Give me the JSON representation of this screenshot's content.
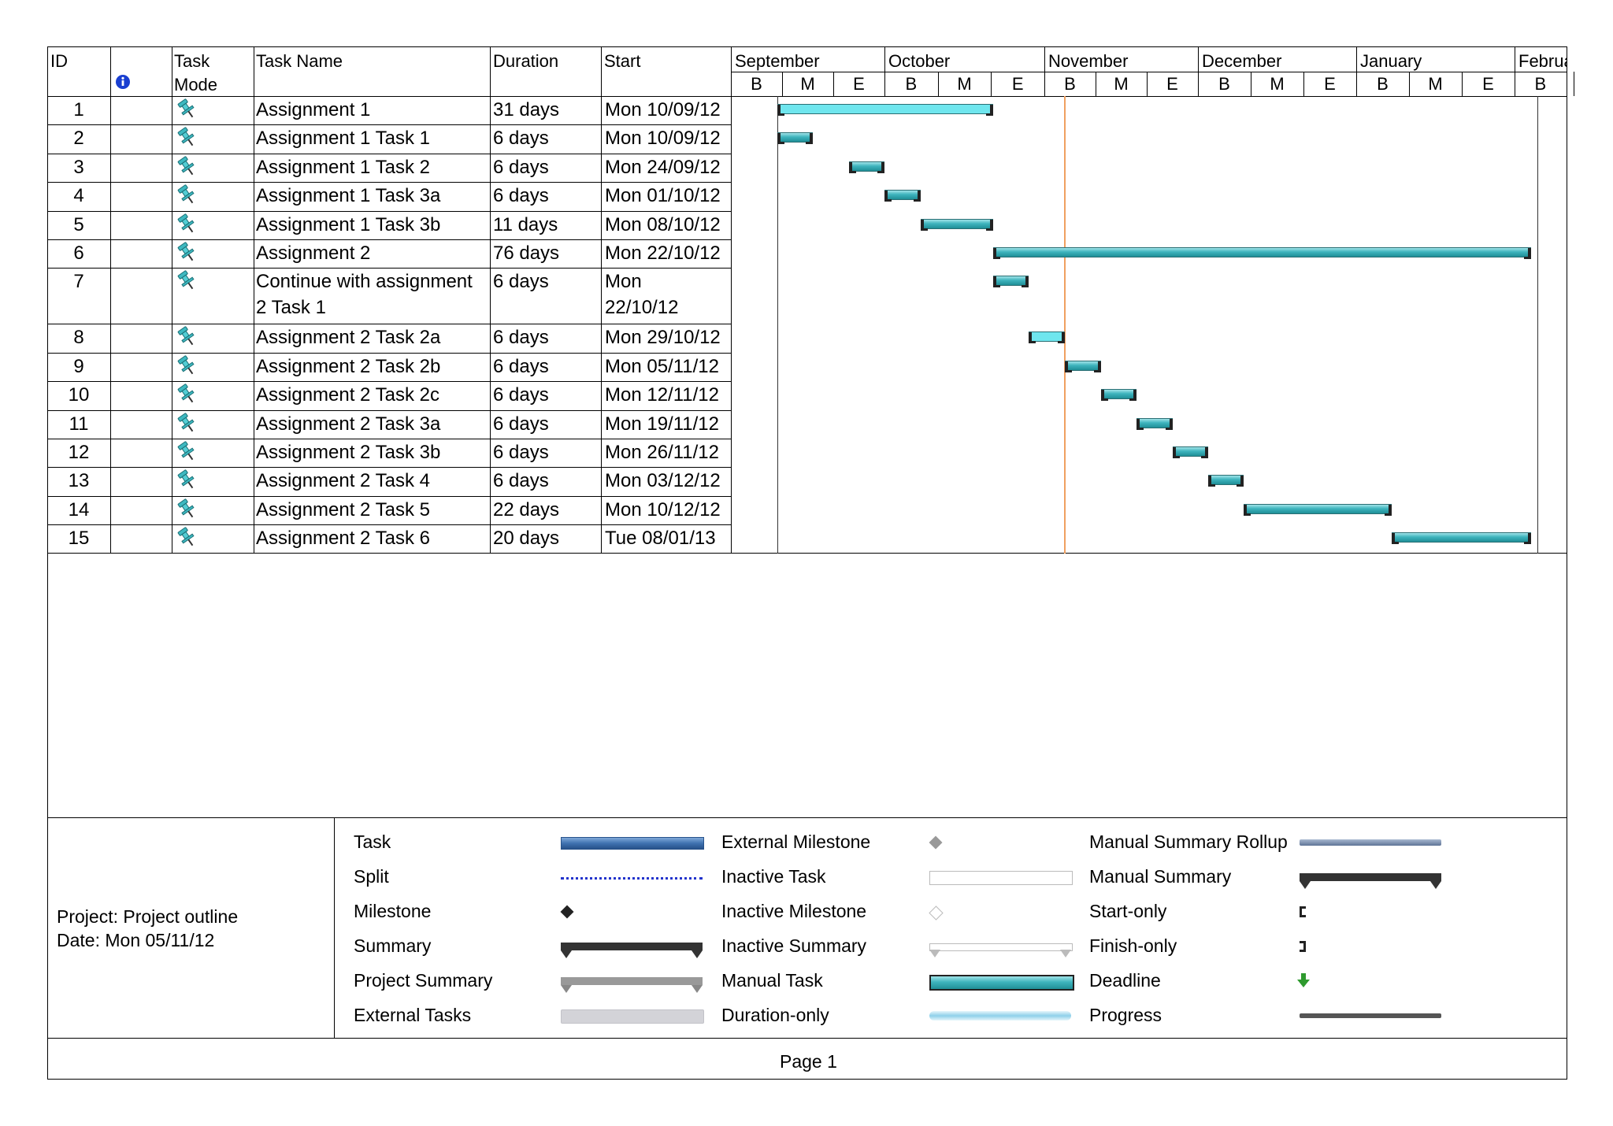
{
  "columns": {
    "id": "ID",
    "info_icon": "info-icon",
    "task_mode_line1": "Task",
    "task_mode_line2": "Mode",
    "task_name": "Task Name",
    "duration": "Duration",
    "start": "Start"
  },
  "timescale": {
    "months": [
      "September",
      "October",
      "November",
      "December",
      "January",
      "Februa"
    ],
    "thirds": [
      "B",
      "M",
      "E",
      "B",
      "M",
      "E",
      "B",
      "M",
      "E",
      "B",
      "M",
      "E",
      "B",
      "M",
      "E",
      "B"
    ]
  },
  "tasks": [
    {
      "id": "1",
      "name": "Assignment 1",
      "duration": "31 days",
      "start": "Mon 10/09/12",
      "start_date": "2012-09-10",
      "end_date": "2012-10-22",
      "highlight": true
    },
    {
      "id": "2",
      "name": "Assignment 1 Task 1",
      "duration": "6 days",
      "start": "Mon 10/09/12",
      "start_date": "2012-09-10",
      "end_date": "2012-09-17"
    },
    {
      "id": "3",
      "name": "Assignment 1 Task 2",
      "duration": "6 days",
      "start": "Mon 24/09/12",
      "start_date": "2012-09-24",
      "end_date": "2012-10-01"
    },
    {
      "id": "4",
      "name": "Assignment 1 Task 3a",
      "duration": "6 days",
      "start": "Mon 01/10/12",
      "start_date": "2012-10-01",
      "end_date": "2012-10-08"
    },
    {
      "id": "5",
      "name": "Assignment 1 Task 3b",
      "duration": "11 days",
      "start": "Mon 08/10/12",
      "start_date": "2012-10-08",
      "end_date": "2012-10-22"
    },
    {
      "id": "6",
      "name": "Assignment 2",
      "duration": "76 days",
      "start": "Mon 22/10/12",
      "start_date": "2012-10-22",
      "end_date": "2013-02-04"
    },
    {
      "id": "7",
      "name_line1": "Continue with assignment",
      "name_line2": "2 Task 1",
      "duration": "6 days",
      "start_line1": "Mon",
      "start_line2": "22/10/12",
      "start_date": "2012-10-22",
      "end_date": "2012-10-29",
      "tall": true
    },
    {
      "id": "8",
      "name": "Assignment 2 Task 2a",
      "duration": "6 days",
      "start": "Mon 29/10/12",
      "start_date": "2012-10-29",
      "end_date": "2012-11-05",
      "highlight": true
    },
    {
      "id": "9",
      "name": "Assignment 2 Task 2b",
      "duration": "6 days",
      "start": "Mon 05/11/12",
      "start_date": "2012-11-05",
      "end_date": "2012-11-12"
    },
    {
      "id": "10",
      "name": "Assignment 2 Task 2c",
      "duration": "6 days",
      "start": "Mon 12/11/12",
      "start_date": "2012-11-12",
      "end_date": "2012-11-19"
    },
    {
      "id": "11",
      "name": "Assignment 2 Task 3a",
      "duration": "6 days",
      "start": "Mon 19/11/12",
      "start_date": "2012-11-19",
      "end_date": "2012-11-26"
    },
    {
      "id": "12",
      "name": "Assignment 2 Task 3b",
      "duration": "6 days",
      "start": "Mon 26/11/12",
      "start_date": "2012-11-26",
      "end_date": "2012-12-03"
    },
    {
      "id": "13",
      "name": "Assignment 2 Task 4",
      "duration": "6 days",
      "start": "Mon 03/12/12",
      "start_date": "2012-12-03",
      "end_date": "2012-12-10"
    },
    {
      "id": "14",
      "name": "Assignment 2 Task 5",
      "duration": "22 days",
      "start": "Mon 10/12/12",
      "start_date": "2012-12-10",
      "end_date": "2013-01-08"
    },
    {
      "id": "15",
      "name": "Assignment 2 Task 6",
      "duration": "20 days",
      "start": "Tue 08/01/13",
      "start_date": "2013-01-08",
      "end_date": "2013-02-04"
    }
  ],
  "status_date": "2012-11-05",
  "footer": {
    "project": "Project: Project outline",
    "date": "Date: Mon 05/11/12",
    "page": "Page 1"
  },
  "legend": {
    "col1": [
      "Task",
      "Split",
      "Milestone",
      "Summary",
      "Project Summary",
      "External Tasks"
    ],
    "col2": [
      "External Milestone",
      "Inactive Task",
      "Inactive Milestone",
      "Inactive Summary",
      "Manual Task",
      "Duration-only"
    ],
    "col3": [
      "Manual Summary Rollup",
      "Manual Summary",
      "Start-only",
      "Finish-only",
      "Deadline",
      "Progress"
    ]
  },
  "colors": {
    "manual_task": "#3eb4bd",
    "highlight_task": "#6fe6ee",
    "status_line": "#f0a060",
    "task_legend": "#3f72b0"
  }
}
